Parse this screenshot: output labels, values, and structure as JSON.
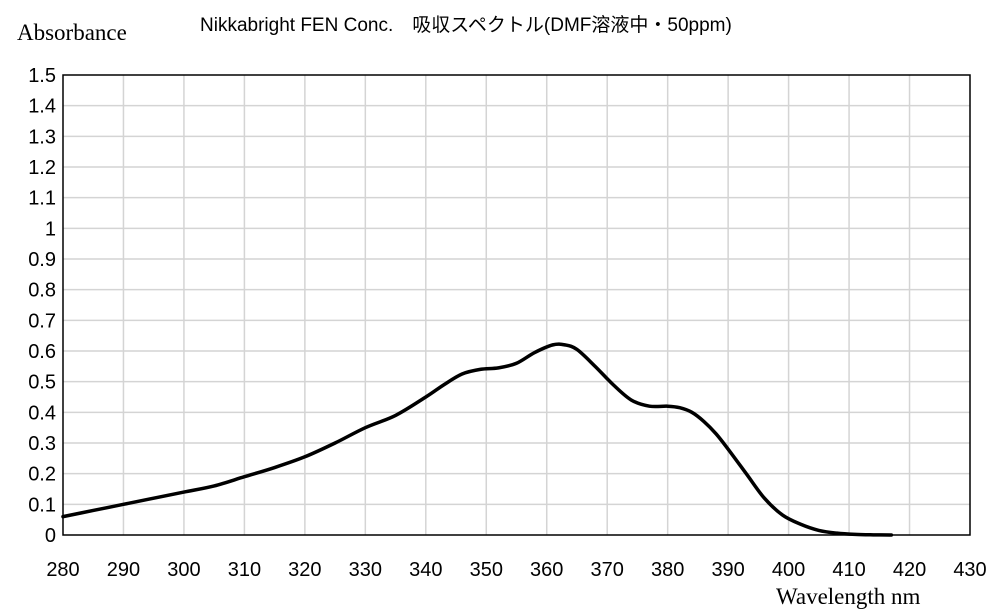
{
  "chart_data": {
    "type": "line",
    "title": "Nikkabright FEN Conc.　吸収スペクトル(DMF溶液中・50ppm)",
    "xlabel": "Wavelength nm",
    "ylabel": "Absorbance",
    "xlim": [
      280,
      430
    ],
    "ylim": [
      0,
      1.5
    ],
    "x_ticks": [
      "280",
      "290",
      "300",
      "310",
      "320",
      "330",
      "340",
      "350",
      "360",
      "370",
      "380",
      "390",
      "400",
      "410",
      "420",
      "430"
    ],
    "y_ticks": [
      "0",
      "0.1",
      "0.2",
      "0.3",
      "0.4",
      "0.5",
      "0.6",
      "0.7",
      "0.8",
      "0.9",
      "1",
      "1.1",
      "1.2",
      "1.3",
      "1.4",
      "1.5"
    ],
    "grid": true,
    "series": [
      {
        "x": [
          280,
          285,
          290,
          295,
          300,
          305,
          310,
          315,
          320,
          325,
          330,
          335,
          340,
          343,
          346,
          349,
          352,
          355,
          358,
          361,
          363,
          365,
          368,
          371,
          374,
          377,
          380,
          382,
          384,
          386,
          388,
          390,
          393,
          396,
          399,
          402,
          405,
          408,
          411,
          414,
          417
        ],
        "y": [
          0.06,
          0.08,
          0.1,
          0.12,
          0.14,
          0.16,
          0.19,
          0.22,
          0.255,
          0.3,
          0.35,
          0.39,
          0.45,
          0.49,
          0.525,
          0.54,
          0.545,
          0.56,
          0.595,
          0.62,
          0.62,
          0.605,
          0.55,
          0.49,
          0.44,
          0.42,
          0.42,
          0.415,
          0.4,
          0.37,
          0.33,
          0.28,
          0.2,
          0.12,
          0.065,
          0.035,
          0.015,
          0.006,
          0.002,
          0.0005,
          0.0
        ]
      }
    ]
  }
}
